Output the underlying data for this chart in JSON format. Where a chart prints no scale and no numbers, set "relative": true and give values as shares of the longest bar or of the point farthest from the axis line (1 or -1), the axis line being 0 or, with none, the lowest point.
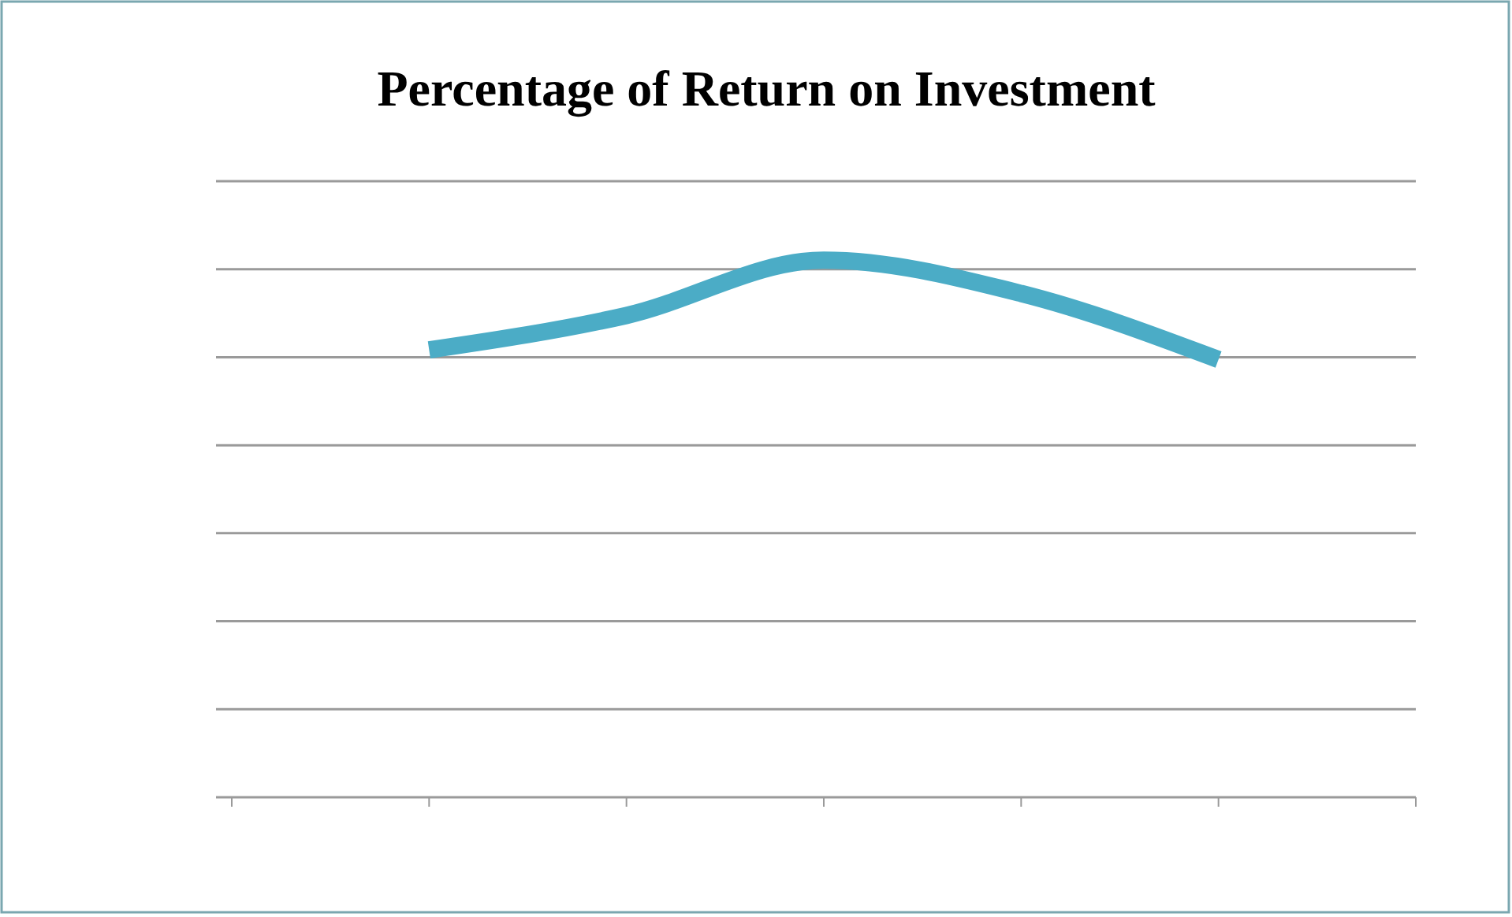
{
  "chart_data": {
    "type": "line",
    "title": "Percentage of Return on Investment",
    "categories": [
      null,
      null,
      null,
      null,
      null,
      null,
      null
    ],
    "relative": true,
    "grid": "y",
    "marker": "none",
    "series": [
      {
        "color": "#4bacc6",
        "values": [
          null,
          0.833,
          0.897,
          1,
          0.938,
          0.815,
          null
        ]
      }
    ]
  }
}
